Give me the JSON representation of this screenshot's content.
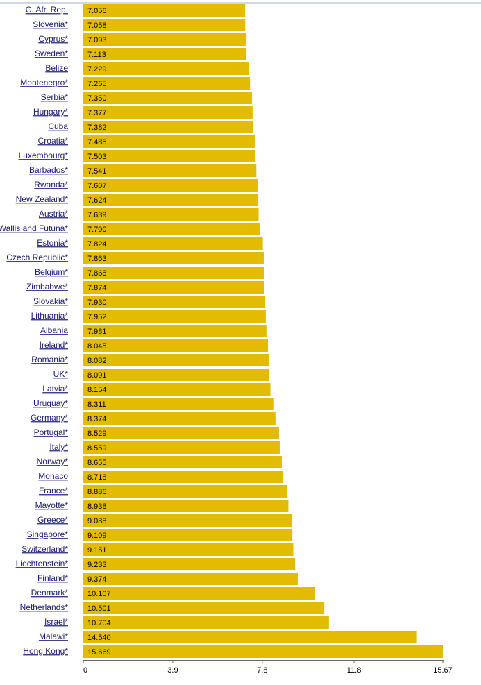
{
  "chart_data": {
    "type": "bar",
    "orientation": "horizontal",
    "color": "#e3bb00",
    "categories": [
      "C. Afr. Rep.",
      "Slovenia*",
      "Cyprus*",
      "Sweden*",
      "Belize",
      "Montenegro*",
      "Serbia*",
      "Hungary*",
      "Cuba",
      "Croatia*",
      "Luxembourg*",
      "Barbados*",
      "Rwanda*",
      "New Zealand*",
      "Austria*",
      "Wallis and Futuna*",
      "Estonia*",
      "Czech Republic*",
      "Belgium*",
      "Zimbabwe*",
      "Slovakia*",
      "Lithuania*",
      "Albania",
      "Ireland*",
      "Romania*",
      "UK*",
      "Latvia*",
      "Uruguay*",
      "Germany*",
      "Portugal*",
      "Italy*",
      "Norway*",
      "Monaco",
      "France*",
      "Mayotte*",
      "Greece*",
      "Singapore*",
      "Switzerland*",
      "Liechtenstein*",
      "Finland*",
      "Denmark*",
      "Netherlands*",
      "Israel*",
      "Malawi*",
      "Hong Kong*"
    ],
    "values": [
      7.056,
      7.058,
      7.093,
      7.113,
      7.229,
      7.265,
      7.35,
      7.377,
      7.382,
      7.485,
      7.503,
      7.541,
      7.607,
      7.624,
      7.639,
      7.7,
      7.824,
      7.863,
      7.868,
      7.874,
      7.93,
      7.952,
      7.981,
      8.045,
      8.082,
      8.091,
      8.154,
      8.311,
      8.374,
      8.529,
      8.559,
      8.655,
      8.718,
      8.886,
      8.938,
      9.088,
      9.109,
      9.151,
      9.233,
      9.374,
      10.107,
      10.501,
      10.704,
      14.54,
      15.669
    ],
    "value_labels": [
      "7.056",
      "7.058",
      "7.093",
      "7.113",
      "7.229",
      "7.265",
      "7.350",
      "7.377",
      "7.382",
      "7.485",
      "7.503",
      "7.541",
      "7.607",
      "7.624",
      "7.639",
      "7.700",
      "7.824",
      "7.863",
      "7.868",
      "7.874",
      "7.930",
      "7.952",
      "7.981",
      "8.045",
      "8.082",
      "8.091",
      "8.154",
      "8.311",
      "8.374",
      "8.529",
      "8.559",
      "8.655",
      "8.718",
      "8.886",
      "8.938",
      "9.088",
      "9.109",
      "9.151",
      "9.233",
      "9.374",
      "10.107",
      "10.501",
      "10.704",
      "14.540",
      "15.669"
    ],
    "xlim": [
      0,
      15.67
    ],
    "xticks": [
      0,
      3.9,
      7.8,
      11.8,
      15.67
    ]
  }
}
